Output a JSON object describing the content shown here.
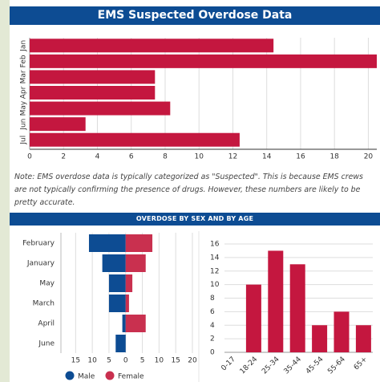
{
  "header": {
    "title": "EMS Suspected Overdose Data"
  },
  "note": "Note: EMS overdose data is typically categorized as \"Suspected\". This is because EMS crews are not typically confirming the presence of drugs. However, these numbers are likely to be pretty accurate.",
  "section_title": "OVERDOSE BY SEX AND BY AGE",
  "chart_data": [
    {
      "type": "hbar",
      "categories": [
        "Jan",
        "Feb",
        "Mar",
        "Apr",
        "May",
        "Jun",
        "Jul"
      ],
      "values": [
        14.4,
        20.5,
        7.4,
        7.4,
        8.3,
        3.3,
        12.4
      ],
      "color": "#c4173f",
      "xlim": [
        0,
        20.5
      ],
      "xticks": [
        0,
        2,
        4,
        6,
        8,
        10,
        12,
        14,
        16,
        18,
        20
      ],
      "grid": true
    },
    {
      "type": "butterfly",
      "categories": [
        "February",
        "January",
        "May",
        "March",
        "April",
        "June"
      ],
      "series": [
        {
          "name": "Male",
          "color": "#0d4c93",
          "values": [
            -11,
            -7,
            -5,
            -5,
            -1,
            -3
          ]
        },
        {
          "name": "Female",
          "color": "#c9304f",
          "values": [
            8,
            6,
            2,
            1,
            6,
            0
          ]
        }
      ],
      "xlim": [
        -17,
        20
      ],
      "xticks": [
        {
          "value": -15,
          "label": "15"
        },
        {
          "value": -10,
          "label": "10"
        },
        {
          "value": -5,
          "label": "5"
        },
        0,
        5,
        10,
        15,
        20
      ],
      "grid": true,
      "legend": "bottom"
    },
    {
      "type": "bar",
      "categories": [
        "0-17",
        "18-24",
        "25-34",
        "35-44",
        "45-54",
        "55-64",
        "65+"
      ],
      "values": [
        0,
        10,
        15,
        13,
        4,
        6,
        4
      ],
      "color": "#c4173f",
      "ylim": [
        0,
        16
      ],
      "yticks": [
        0,
        2,
        4,
        6,
        8,
        10,
        12,
        14,
        16
      ],
      "grid": true
    }
  ]
}
